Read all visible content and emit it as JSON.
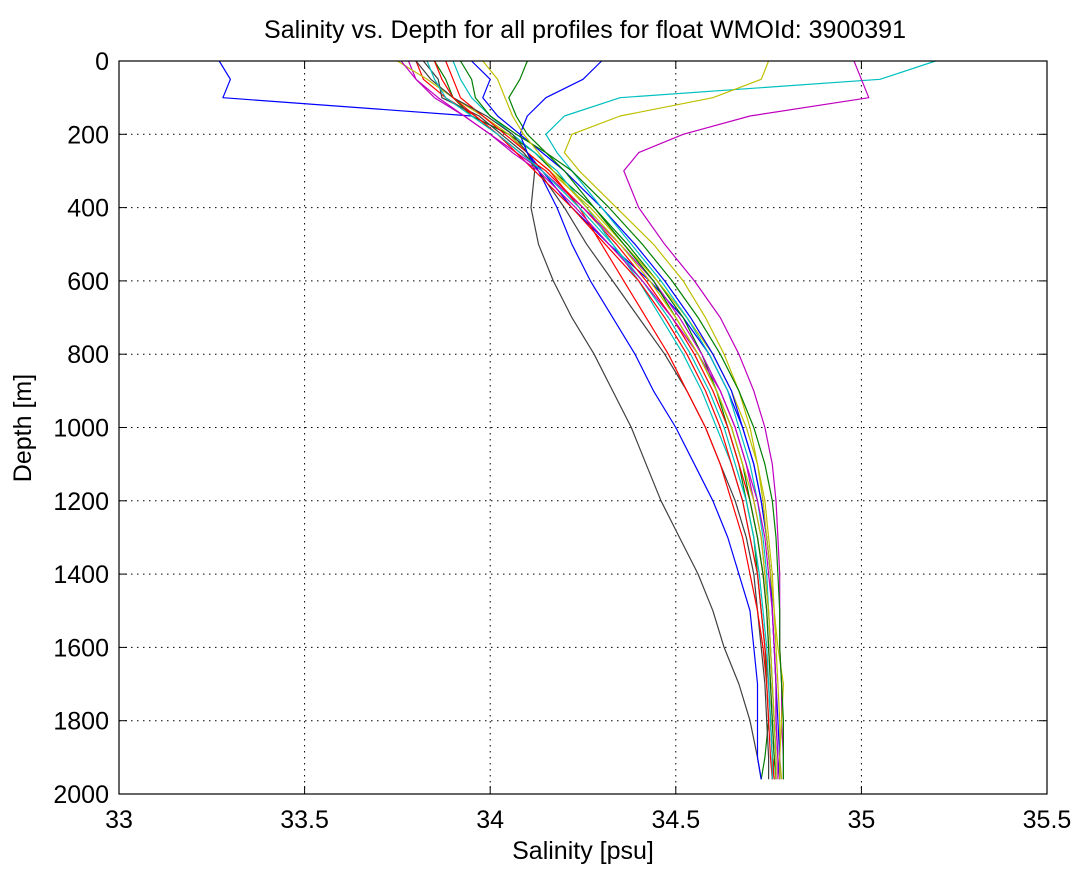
{
  "chart_data": {
    "type": "line",
    "title": "Salinity vs. Depth for all profiles for float WMOId: 3900391",
    "xlabel": "Salinity [psu]",
    "ylabel": "Depth [m]",
    "xlim": [
      33,
      35.5
    ],
    "ylim": [
      0,
      2000
    ],
    "y_reversed": true,
    "x_ticks": [
      33,
      33.5,
      34,
      34.5,
      35,
      35.5
    ],
    "x_tick_labels": [
      "33",
      "33.5",
      "34",
      "34.5",
      "35",
      "35.5"
    ],
    "y_ticks": [
      0,
      200,
      400,
      600,
      800,
      1000,
      1200,
      1400,
      1600,
      1800,
      2000
    ],
    "y_tick_labels": [
      "0",
      "200",
      "400",
      "600",
      "800",
      "1000",
      "1200",
      "1400",
      "1600",
      "1800",
      "2000"
    ],
    "grid": "dotted",
    "legend": "none",
    "series_colors": [
      "#0000ff",
      "#007f00",
      "#ff0000",
      "#00bfbf",
      "#bf00bf",
      "#bfbf00",
      "#404040"
    ],
    "depths": [
      0,
      50,
      100,
      150,
      200,
      250,
      300,
      400,
      500,
      600,
      700,
      800,
      900,
      1000,
      1100,
      1200,
      1300,
      1400,
      1500,
      1600,
      1700,
      1800,
      1900,
      1960
    ],
    "series": [
      {
        "values": [
          33.27,
          33.3,
          33.28,
          33.95,
          34.05,
          34.1,
          34.14,
          34.22,
          34.32,
          34.43,
          34.52,
          34.59,
          34.64,
          34.68,
          34.71,
          34.73,
          34.745,
          34.755,
          34.76,
          34.765,
          34.77,
          34.77,
          34.775,
          34.78
        ]
      },
      {
        "values": [
          33.85,
          33.88,
          33.9,
          33.95,
          34.05,
          34.12,
          34.17,
          34.28,
          34.37,
          34.45,
          34.52,
          34.57,
          34.61,
          34.64,
          34.67,
          34.69,
          34.71,
          34.72,
          34.73,
          34.74,
          34.745,
          34.75,
          34.74,
          34.73
        ]
      },
      {
        "values": [
          33.8,
          33.82,
          33.88,
          33.96,
          34.02,
          34.08,
          34.15,
          34.25,
          34.34,
          34.42,
          34.49,
          34.55,
          34.6,
          34.64,
          34.67,
          34.7,
          34.72,
          34.735,
          34.745,
          34.75,
          34.755,
          34.76,
          34.765,
          34.76
        ]
      },
      {
        "values": [
          33.9,
          33.92,
          33.95,
          34.0,
          34.06,
          34.12,
          34.18,
          34.26,
          34.33,
          34.4,
          34.46,
          34.52,
          34.57,
          34.61,
          34.65,
          34.68,
          34.7,
          34.72,
          34.73,
          34.74,
          34.75,
          34.755,
          34.76,
          34.765
        ]
      },
      {
        "values": [
          33.78,
          33.8,
          33.85,
          33.93,
          34.0,
          34.07,
          34.14,
          34.25,
          34.35,
          34.44,
          34.51,
          34.57,
          34.62,
          34.66,
          34.69,
          34.71,
          34.73,
          34.74,
          34.75,
          34.755,
          34.76,
          34.765,
          34.77,
          34.77
        ]
      },
      {
        "values": [
          33.75,
          33.83,
          33.9,
          33.98,
          34.05,
          34.1,
          34.16,
          34.27,
          34.36,
          34.45,
          34.53,
          34.6,
          34.65,
          34.69,
          34.72,
          34.74,
          34.75,
          34.76,
          34.765,
          34.77,
          34.775,
          34.78,
          34.78,
          34.785
        ]
      },
      {
        "values": [
          33.82,
          33.86,
          33.87,
          33.97,
          34.03,
          34.09,
          34.13,
          34.2,
          34.26,
          34.33,
          34.4,
          34.47,
          34.53,
          34.58,
          34.62,
          34.66,
          34.69,
          34.71,
          34.72,
          34.73,
          34.74,
          34.745,
          34.75,
          34.75
        ]
      },
      {
        "values": [
          33.95,
          34.0,
          33.98,
          34.02,
          34.08,
          34.14,
          34.2,
          34.3,
          34.39,
          34.47,
          34.54,
          34.6,
          34.65,
          34.68,
          34.71,
          34.73,
          34.745,
          34.755,
          34.76,
          34.765,
          34.77,
          34.775,
          34.78,
          34.78
        ]
      },
      {
        "values": [
          34.1,
          34.08,
          34.05,
          34.07,
          34.1,
          34.15,
          34.2,
          34.28,
          34.36,
          34.44,
          34.5,
          34.56,
          34.61,
          34.65,
          34.68,
          34.7,
          34.72,
          34.735,
          34.745,
          34.75,
          34.755,
          34.76,
          34.765,
          34.77
        ]
      },
      {
        "values": [
          33.88,
          33.9,
          33.92,
          33.98,
          34.04,
          34.1,
          34.16,
          34.24,
          34.3,
          34.36,
          34.42,
          34.48,
          34.53,
          34.58,
          34.62,
          34.65,
          34.68,
          34.7,
          34.72,
          34.735,
          34.745,
          34.75,
          34.755,
          34.76
        ]
      },
      {
        "values": [
          35.2,
          35.05,
          34.35,
          34.2,
          34.15,
          34.18,
          34.22,
          34.3,
          34.38,
          34.46,
          34.53,
          34.59,
          34.64,
          34.67,
          34.7,
          34.72,
          34.735,
          34.745,
          34.75,
          34.755,
          34.76,
          34.765,
          34.77,
          34.77
        ]
      },
      {
        "values": [
          34.98,
          35.0,
          35.02,
          34.7,
          34.52,
          34.4,
          34.36,
          34.4,
          34.47,
          34.55,
          34.62,
          34.67,
          34.71,
          34.74,
          34.76,
          34.77,
          34.775,
          34.78,
          34.78,
          34.78,
          34.785,
          34.785,
          34.79,
          34.79
        ]
      },
      {
        "values": [
          34.75,
          34.73,
          34.6,
          34.35,
          34.22,
          34.2,
          34.24,
          34.34,
          34.44,
          34.52,
          34.58,
          34.63,
          34.67,
          34.7,
          34.72,
          34.735,
          34.745,
          34.755,
          34.765,
          34.775,
          34.79,
          34.785,
          34.78,
          34.78
        ]
      },
      {
        "values": [
          33.8,
          33.84,
          33.9,
          33.99,
          34.06,
          34.1,
          34.12,
          34.11,
          34.13,
          34.17,
          34.22,
          34.28,
          34.33,
          34.38,
          34.42,
          34.46,
          34.51,
          34.56,
          34.6,
          34.63,
          34.67,
          34.7,
          34.72,
          34.73
        ]
      },
      {
        "values": [
          34.3,
          34.25,
          34.15,
          34.1,
          34.08,
          34.1,
          34.13,
          34.18,
          34.22,
          34.27,
          34.33,
          34.39,
          34.44,
          34.5,
          34.55,
          34.6,
          34.64,
          34.67,
          34.7,
          34.71,
          34.72,
          34.72,
          34.72,
          34.73
        ]
      },
      {
        "values": [
          33.92,
          33.95,
          33.96,
          34.0,
          34.07,
          34.15,
          34.22,
          34.32,
          34.41,
          34.49,
          34.56,
          34.62,
          34.67,
          34.71,
          34.74,
          34.76,
          34.77,
          34.775,
          34.78,
          34.78,
          34.785,
          34.79,
          34.79,
          34.79
        ]
      },
      {
        "values": [
          33.85,
          33.87,
          33.9,
          33.96,
          34.02,
          34.07,
          34.12,
          34.22,
          34.31,
          34.4,
          34.47,
          34.53,
          34.58,
          34.62,
          34.65,
          34.68,
          34.7,
          34.72,
          34.73,
          34.74,
          34.75,
          34.755,
          34.76,
          34.765
        ]
      },
      {
        "values": [
          33.83,
          33.85,
          33.88,
          33.95,
          34.02,
          34.08,
          34.14,
          34.24,
          34.33,
          34.41,
          34.48,
          34.54,
          34.59,
          34.63,
          34.66,
          34.69,
          34.71,
          34.725,
          34.735,
          34.745,
          34.75,
          34.755,
          34.76,
          34.76
        ]
      },
      {
        "values": [
          33.76,
          33.8,
          33.86,
          33.93,
          34.0,
          34.06,
          34.13,
          34.23,
          34.32,
          34.41,
          34.49,
          34.56,
          34.62,
          34.66,
          34.69,
          34.72,
          34.74,
          34.75,
          34.76,
          34.765,
          34.77,
          34.77,
          34.775,
          34.775
        ]
      },
      {
        "values": [
          33.98,
          34.02,
          34.04,
          34.06,
          34.09,
          34.13,
          34.17,
          34.26,
          34.35,
          34.43,
          34.5,
          34.56,
          34.61,
          34.65,
          34.68,
          34.71,
          34.73,
          34.74,
          34.75,
          34.755,
          34.76,
          34.765,
          34.77,
          34.77
        ]
      }
    ]
  }
}
